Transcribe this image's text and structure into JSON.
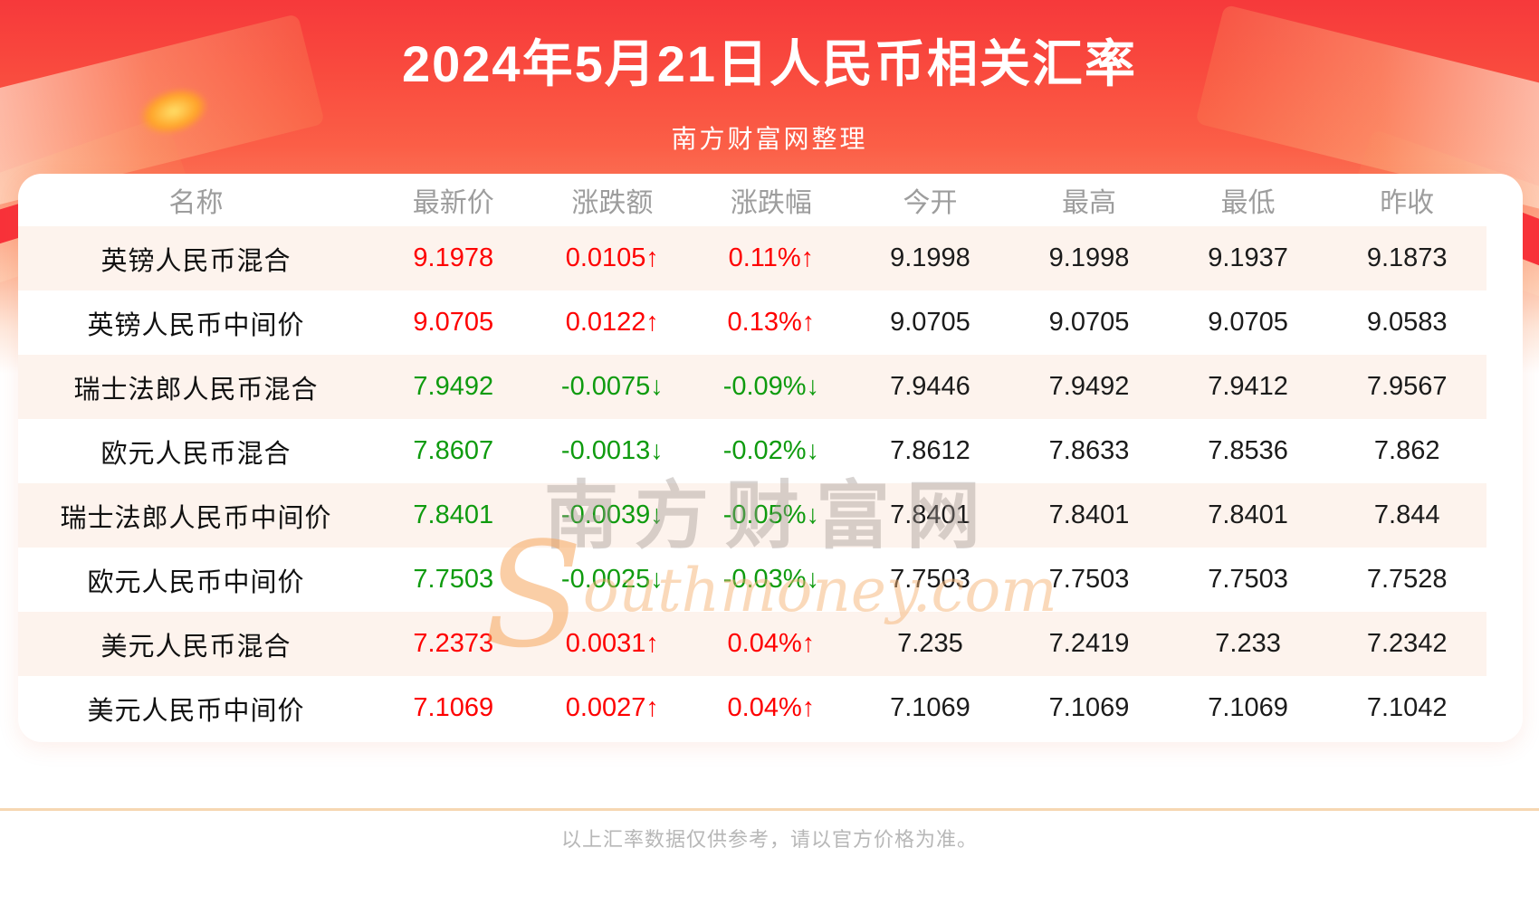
{
  "header": {
    "title": "2024年5月21日人民币相关汇率",
    "subtitle": "南方财富网整理"
  },
  "table": {
    "columns": [
      "名称",
      "最新价",
      "涨跌额",
      "涨跌幅",
      "今开",
      "最高",
      "最低",
      "昨收"
    ],
    "rows": [
      {
        "name": "英镑人民币混合",
        "latest": "9.1978",
        "change": "0.0105↑",
        "change_pct": "0.11%↑",
        "open": "9.1998",
        "high": "9.1998",
        "low": "9.1937",
        "prev_close": "9.1873",
        "trend": "up"
      },
      {
        "name": "英镑人民币中间价",
        "latest": "9.0705",
        "change": "0.0122↑",
        "change_pct": "0.13%↑",
        "open": "9.0705",
        "high": "9.0705",
        "low": "9.0705",
        "prev_close": "9.0583",
        "trend": "up"
      },
      {
        "name": "瑞士法郎人民币混合",
        "latest": "7.9492",
        "change": "-0.0075↓",
        "change_pct": "-0.09%↓",
        "open": "7.9446",
        "high": "7.9492",
        "low": "7.9412",
        "prev_close": "7.9567",
        "trend": "down"
      },
      {
        "name": "欧元人民币混合",
        "latest": "7.8607",
        "change": "-0.0013↓",
        "change_pct": "-0.02%↓",
        "open": "7.8612",
        "high": "7.8633",
        "low": "7.8536",
        "prev_close": "7.862",
        "trend": "down"
      },
      {
        "name": "瑞士法郎人民币中间价",
        "latest": "7.8401",
        "change": "-0.0039↓",
        "change_pct": "-0.05%↓",
        "open": "7.8401",
        "high": "7.8401",
        "low": "7.8401",
        "prev_close": "7.844",
        "trend": "down"
      },
      {
        "name": "欧元人民币中间价",
        "latest": "7.7503",
        "change": "-0.0025↓",
        "change_pct": "-0.03%↓",
        "open": "7.7503",
        "high": "7.7503",
        "low": "7.7503",
        "prev_close": "7.7528",
        "trend": "down"
      },
      {
        "name": "美元人民币混合",
        "latest": "7.2373",
        "change": "0.0031↑",
        "change_pct": "0.04%↑",
        "open": "7.235",
        "high": "7.2419",
        "low": "7.233",
        "prev_close": "7.2342",
        "trend": "up"
      },
      {
        "name": "美元人民币中间价",
        "latest": "7.1069",
        "change": "0.0027↑",
        "change_pct": "0.04%↑",
        "open": "7.1069",
        "high": "7.1069",
        "low": "7.1069",
        "prev_close": "7.1042",
        "trend": "up"
      }
    ]
  },
  "watermark": {
    "zh": "南方财富网",
    "en_initial": "S",
    "en_rest": "outhmoney.com"
  },
  "footer": {
    "note": "以上汇率数据仅供参考，请以官方价格为准。"
  },
  "colors": {
    "up_color": "#fe0000",
    "down_color": "#0f9b0f",
    "stripe_bg": "#fdf3ed",
    "banner_red": "#f6393b",
    "divider_color": "#f6d7b2"
  }
}
